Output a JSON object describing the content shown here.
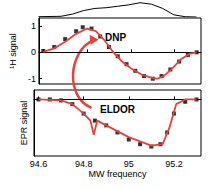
{
  "chart_data": [
    {
      "type": "line",
      "tick_labels": false,
      "grid": false,
      "xlim": [
        94.58,
        95.32
      ],
      "ylim": [
        0,
        1.05
      ],
      "series": [
        {
          "type": "line",
          "color": "#000000",
          "line_style": "solid",
          "x": [
            94.6,
            94.7,
            94.75,
            94.8,
            94.85,
            94.9,
            94.95,
            95.0,
            95.05,
            95.1,
            95.15,
            95.2,
            95.25,
            95.3
          ],
          "values": [
            0.02,
            0.05,
            0.2,
            0.45,
            0.6,
            0.65,
            0.75,
            0.85,
            1.0,
            0.9,
            0.6,
            0.15,
            0.02,
            0
          ]
        }
      ]
    },
    {
      "type": "line",
      "y_label": "¹H signal",
      "tick_labels": "y",
      "grid": false,
      "xlim": [
        94.58,
        95.32
      ],
      "xticks": [
        94.6,
        94.8,
        95,
        95.2
      ],
      "ylim": [
        -1.2,
        1.3
      ],
      "yticks": [
        -1,
        0,
        1
      ],
      "annotations": [
        {
          "text": "DNP",
          "x": 94.93,
          "y": 0.55
        }
      ],
      "series": [
        {
          "type": "scatter",
          "color": "#000000",
          "marker": "square",
          "x": [
            94.6,
            94.65,
            94.7,
            94.75,
            94.78,
            94.82,
            94.86,
            94.9,
            94.94,
            94.98,
            95.02,
            95.06,
            95.1,
            95.14,
            95.18,
            95.22,
            95.26,
            95.3
          ],
          "values": [
            0.05,
            0.2,
            0.5,
            0.8,
            0.95,
            0.9,
            0.6,
            0.2,
            -0.15,
            -0.45,
            -0.7,
            -0.9,
            -1.0,
            -0.9,
            -0.65,
            -0.35,
            -0.1,
            0
          ]
        },
        {
          "type": "line",
          "color": "#e8413c",
          "line_style": "solid",
          "x": [
            94.6,
            94.65,
            94.7,
            94.75,
            94.8,
            94.84,
            94.88,
            94.92,
            94.96,
            95.0,
            95.05,
            95.1,
            95.12,
            95.15,
            95.19,
            95.23,
            95.27,
            95.3
          ],
          "values": [
            0.02,
            0.15,
            0.4,
            0.7,
            0.9,
            0.8,
            0.45,
            0.0,
            -0.35,
            -0.6,
            -0.85,
            -0.98,
            -1.0,
            -0.9,
            -0.6,
            -0.25,
            -0.05,
            0
          ]
        }
      ]
    },
    {
      "type": "line",
      "x_label": "MW frequency",
      "y_label": "EPR signal",
      "tick_labels": "x",
      "grid": false,
      "xlim": [
        94.58,
        95.32
      ],
      "xticks": [
        94.6,
        94.8,
        95,
        95.2
      ],
      "ylim": [
        -1.2,
        0.2
      ],
      "annotations": [
        {
          "text": "ELDOR",
          "x": 94.95,
          "y": -0.22
        }
      ],
      "series": [
        {
          "type": "scatter",
          "color": "#000000",
          "marker": "square",
          "x": [
            94.6,
            94.65,
            94.7,
            94.75,
            94.8,
            94.85,
            94.9,
            94.95,
            95.0,
            95.05,
            95.1,
            95.14,
            95.17,
            95.2,
            95.25,
            95.3
          ],
          "values": [
            0,
            0,
            -0.02,
            -0.1,
            -0.3,
            -0.45,
            -0.55,
            -0.7,
            -0.85,
            -0.95,
            -1.0,
            -0.95,
            -0.7,
            -0.3,
            -0.05,
            0
          ]
        },
        {
          "type": "line",
          "color": "#e8413c",
          "line_style": "solid",
          "x": [
            94.6,
            94.7,
            94.75,
            94.8,
            94.83,
            94.845,
            94.86,
            94.9,
            95.0,
            95.1,
            95.15,
            95.18,
            95.21,
            95.25,
            95.3
          ],
          "values": [
            0,
            -0.02,
            -0.1,
            -0.3,
            -0.45,
            -0.75,
            -0.45,
            -0.55,
            -0.8,
            -0.98,
            -0.95,
            -0.6,
            -0.1,
            0,
            0
          ]
        }
      ]
    }
  ]
}
